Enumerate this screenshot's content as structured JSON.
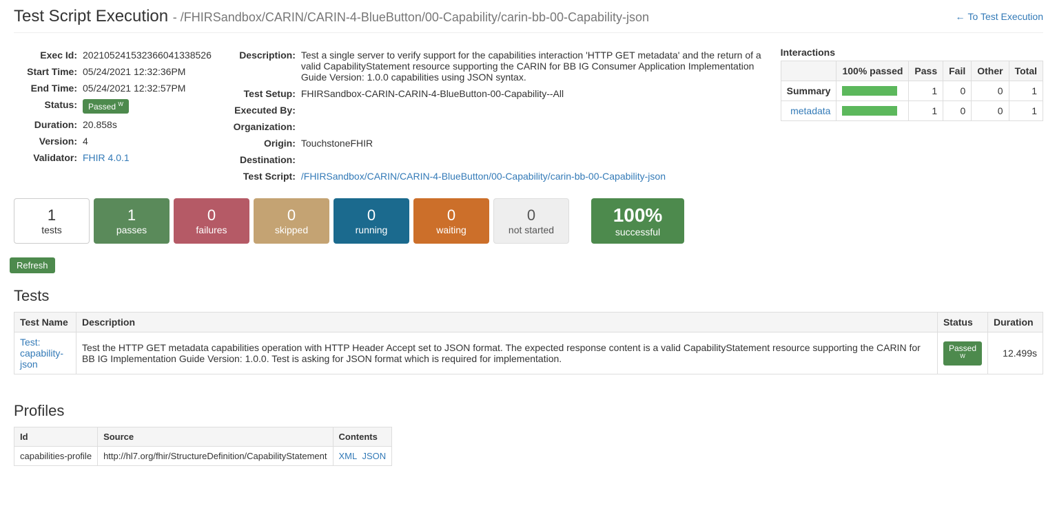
{
  "header": {
    "title": "Test Script Execution",
    "subtitle": "- /FHIRSandbox/CARIN/CARIN-4-BlueButton/00-Capability/carin-bb-00-Capability-json",
    "back_link": "To Test Execution"
  },
  "details_left": {
    "exec_id_label": "Exec Id:",
    "exec_id": "2021052415323660413385​26",
    "start_time_label": "Start Time:",
    "start_time": "05/24/2021 12:32:36PM",
    "end_time_label": "End Time:",
    "end_time": "05/24/2021 12:32:57PM",
    "status_label": "Status:",
    "status_badge": "Passed",
    "status_sup": "W",
    "duration_label": "Duration:",
    "duration": "20.858s",
    "version_label": "Version:",
    "version": "4",
    "validator_label": "Validator:",
    "validator": "FHIR 4.0.1"
  },
  "details_right": {
    "description_label": "Description:",
    "description": "Test a single server to verify support for the capabilities interaction 'HTTP GET metadata' and the return of a valid CapabilityStatement resource supporting the CARIN for BB IG Consumer Application Implementation Guide Version: 1.0.0 capabilities using JSON syntax.",
    "test_setup_label": "Test Setup:",
    "test_setup": "FHIRSandbox-CARIN-CARIN-4-BlueButton-00-Capability--All",
    "executed_by_label": "Executed By:",
    "executed_by": "",
    "organization_label": "Organization:",
    "organization": "",
    "origin_label": "Origin:",
    "origin": "TouchstoneFHIR",
    "destination_label": "Destination:",
    "destination": "",
    "test_script_label": "Test Script:",
    "test_script": "/FHIRSandbox/CARIN/CARIN-4-BlueButton/00-Capability/carin-bb-00-Capability-json"
  },
  "interactions": {
    "title": "Interactions",
    "headers": {
      "passed": "100% passed",
      "pass": "Pass",
      "fail": "Fail",
      "other": "Other",
      "total": "Total"
    },
    "rows": [
      {
        "label": "Summary",
        "is_link": false,
        "bar_pct": 100,
        "pass": 1,
        "fail": 0,
        "other": 0,
        "total": 1
      },
      {
        "label": "metadata",
        "is_link": true,
        "bar_pct": 100,
        "pass": 1,
        "fail": 0,
        "other": 0,
        "total": 1
      }
    ]
  },
  "counters": {
    "tests": {
      "value": "1",
      "label": "tests"
    },
    "passes": {
      "value": "1",
      "label": "passes"
    },
    "failures": {
      "value": "0",
      "label": "failures"
    },
    "skipped": {
      "value": "0",
      "label": "skipped"
    },
    "running": {
      "value": "0",
      "label": "running"
    },
    "waiting": {
      "value": "0",
      "label": "waiting"
    },
    "notstarted": {
      "value": "0",
      "label": "not started"
    },
    "success": {
      "value": "100%",
      "label": "successful"
    }
  },
  "refresh_label": "Refresh",
  "tests_section": {
    "title": "Tests",
    "headers": {
      "name": "Test Name",
      "desc": "Description",
      "status": "Status",
      "dur": "Duration"
    },
    "rows": [
      {
        "name": "Test: capability-json",
        "desc": "Test the HTTP GET metadata capabilities operation with HTTP Header Accept set to JSON format. The expected response content is a valid CapabilityStatement resource supporting the CARIN for BB IG Implementation Guide Version: 1.0.0. Test is asking for JSON format which is required for implementation.",
        "status": "Passed",
        "status_sup": "W",
        "dur": "12.499s"
      }
    ]
  },
  "profiles_section": {
    "title": "Profiles",
    "headers": {
      "id": "Id",
      "source": "Source",
      "contents": "Contents"
    },
    "rows": [
      {
        "id": "capabilities-profile",
        "source": "http://hl7.org/fhir/StructureDefinition/CapabilityStatement",
        "xml": "XML",
        "json": "JSON"
      }
    ]
  }
}
